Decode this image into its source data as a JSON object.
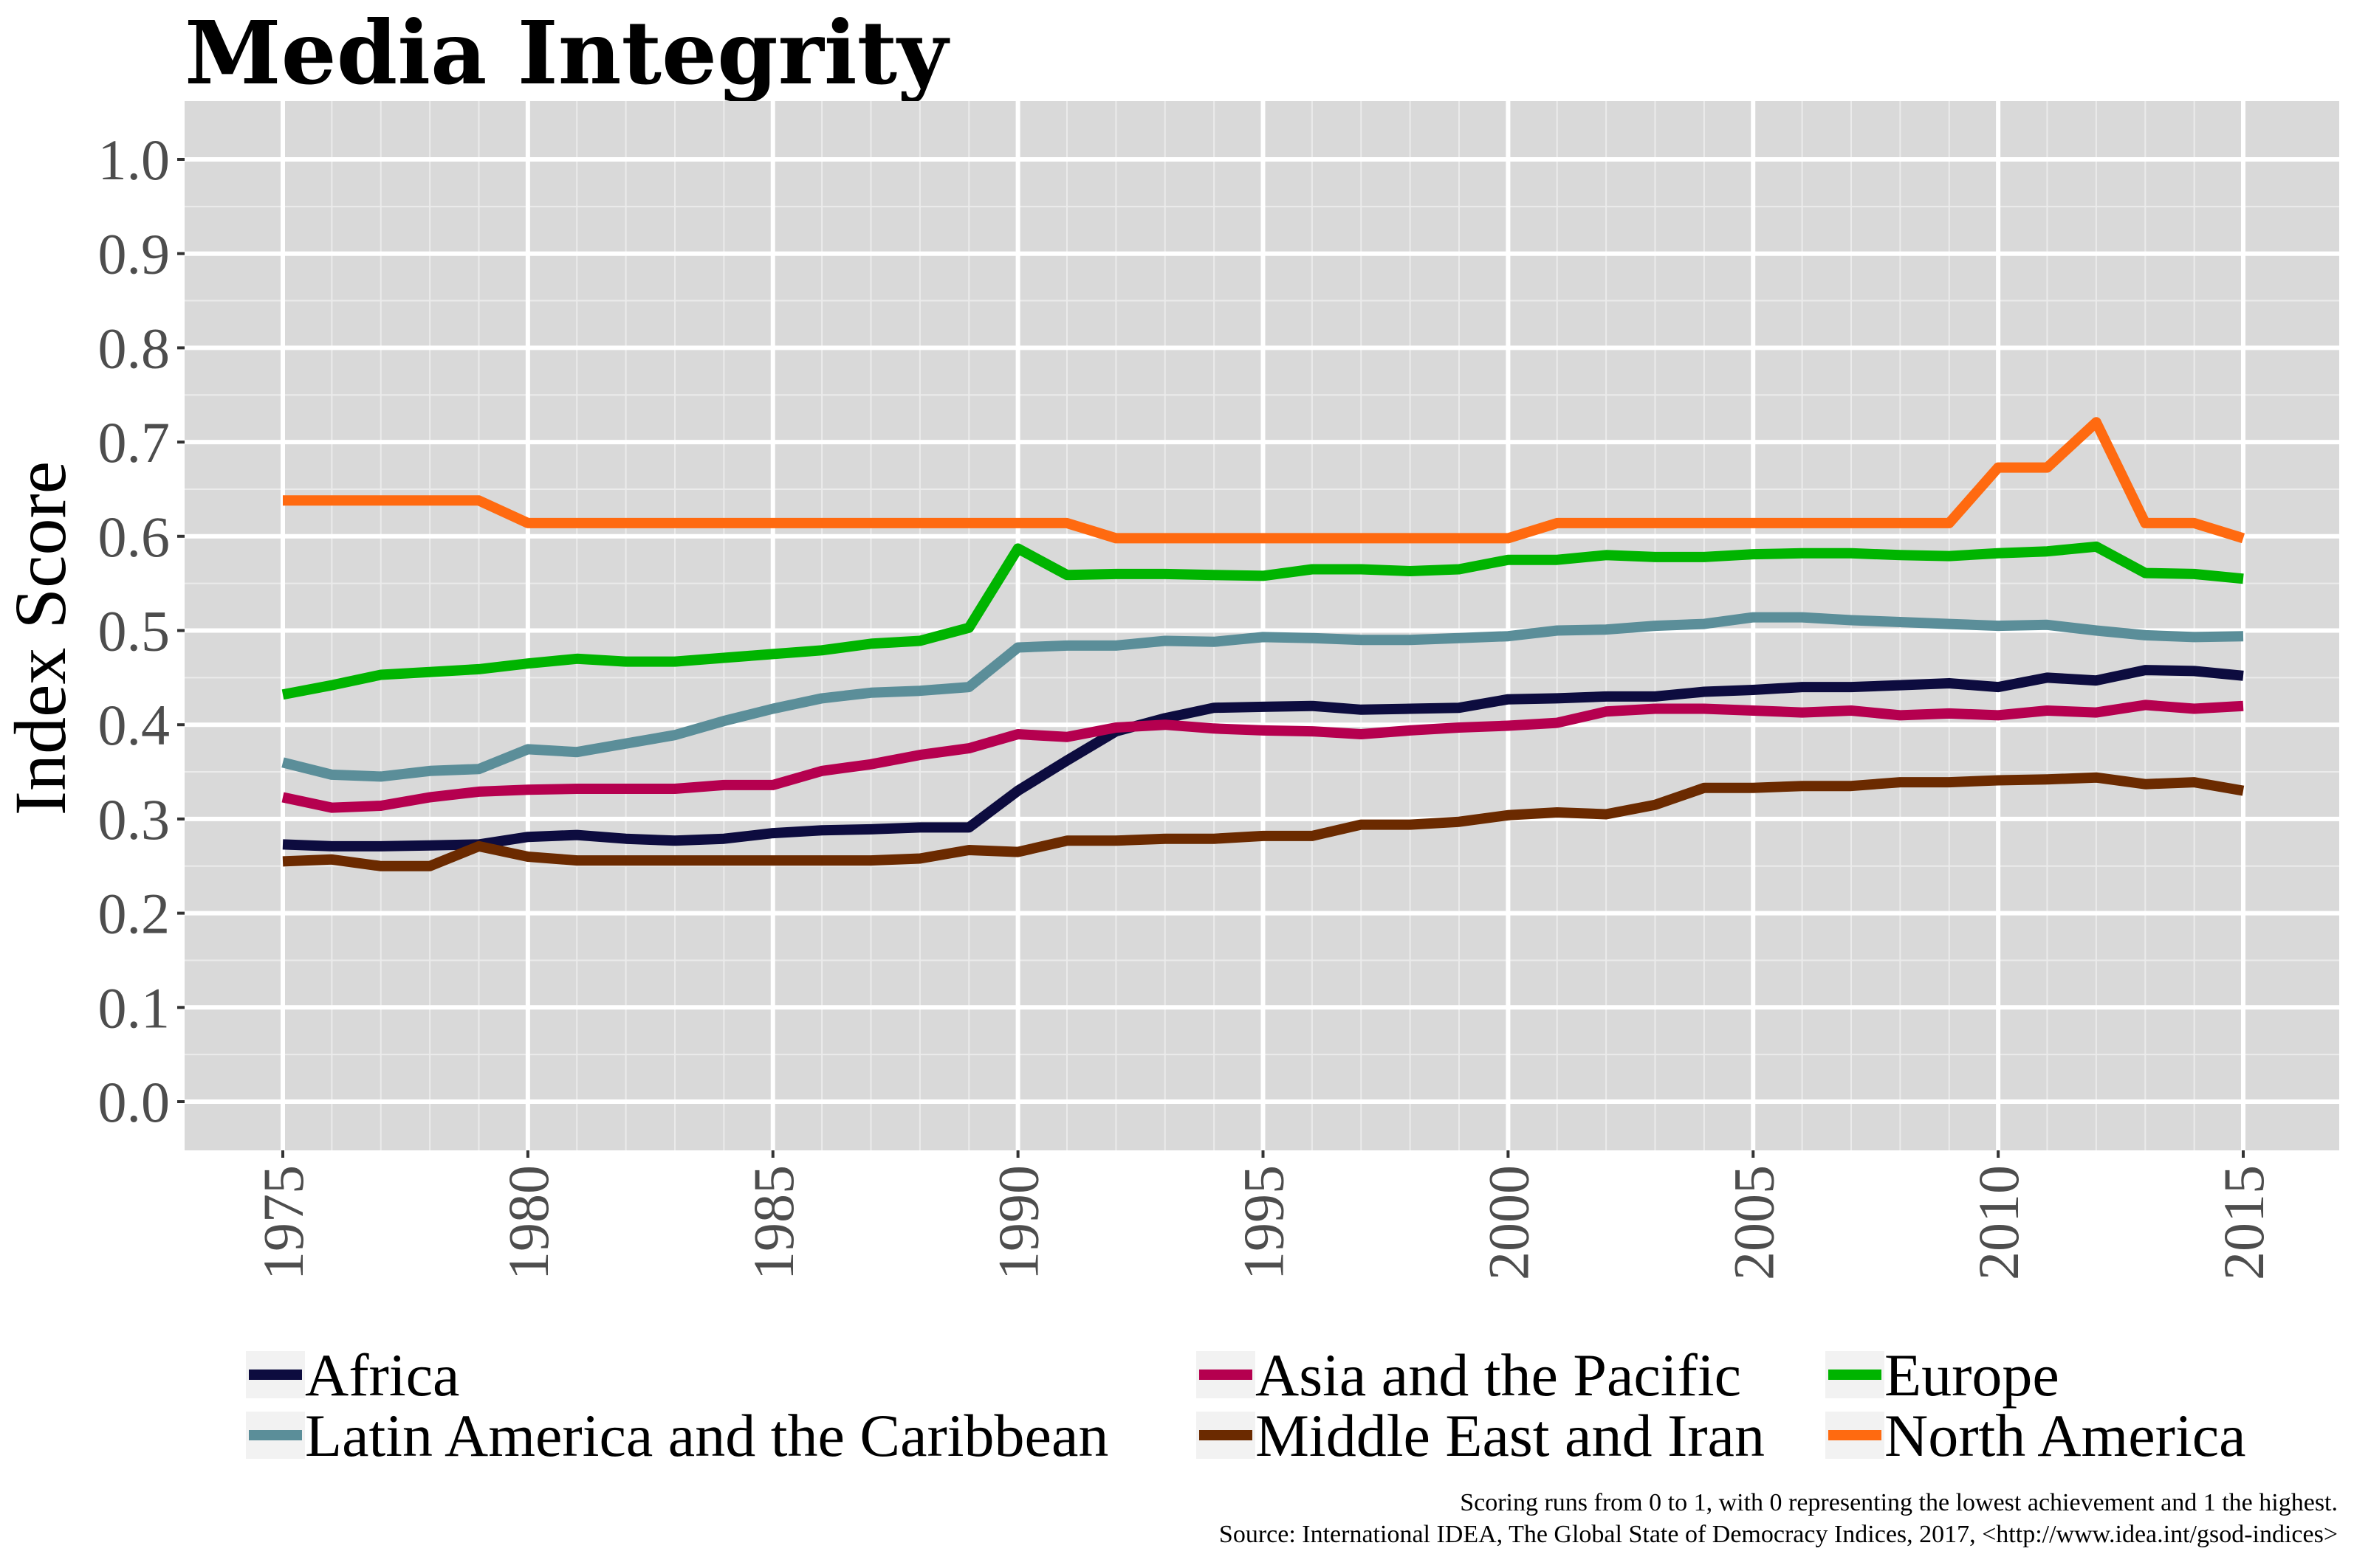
{
  "chart_data": {
    "type": "line",
    "title": "Media Integrity",
    "xlabel": "",
    "ylabel": "Index Score",
    "xlim": [
      1975,
      2015
    ],
    "ylim": [
      0.0,
      1.0
    ],
    "x_ticks": [
      "1975",
      "1980",
      "1985",
      "1990",
      "1995",
      "2000",
      "2005",
      "2010",
      "2015"
    ],
    "y_ticks": [
      "0.0",
      "0.1",
      "0.2",
      "0.3",
      "0.4",
      "0.5",
      "0.6",
      "0.7",
      "0.8",
      "0.9",
      "1.0"
    ],
    "grid": true,
    "legend_position": "bottom",
    "x": [
      1975,
      1976,
      1977,
      1978,
      1979,
      1980,
      1981,
      1982,
      1983,
      1984,
      1985,
      1986,
      1987,
      1988,
      1989,
      1990,
      1991,
      1992,
      1993,
      1994,
      1995,
      1996,
      1997,
      1998,
      1999,
      2000,
      2001,
      2002,
      2003,
      2004,
      2005,
      2006,
      2007,
      2008,
      2009,
      2010,
      2011,
      2012,
      2013,
      2014,
      2015
    ],
    "series": [
      {
        "name": "Africa",
        "color": "#0d0c3f",
        "values": [
          0.273,
          0.271,
          0.271,
          0.272,
          0.273,
          0.281,
          0.283,
          0.279,
          0.277,
          0.279,
          0.285,
          0.288,
          0.289,
          0.291,
          0.291,
          0.33,
          0.362,
          0.393,
          0.407,
          0.418,
          0.419,
          0.42,
          0.416,
          0.417,
          0.418,
          0.427,
          0.428,
          0.43,
          0.43,
          0.435,
          0.437,
          0.44,
          0.44,
          0.442,
          0.444,
          0.44,
          0.45,
          0.447,
          0.458,
          0.457,
          0.452
        ]
      },
      {
        "name": "Asia and the Pacific",
        "color": "#b5004f",
        "values": [
          0.323,
          0.312,
          0.314,
          0.323,
          0.329,
          0.331,
          0.332,
          0.332,
          0.332,
          0.336,
          0.336,
          0.351,
          0.358,
          0.368,
          0.375,
          0.39,
          0.387,
          0.397,
          0.4,
          0.396,
          0.394,
          0.393,
          0.39,
          0.394,
          0.397,
          0.399,
          0.402,
          0.414,
          0.417,
          0.417,
          0.415,
          0.413,
          0.415,
          0.41,
          0.412,
          0.41,
          0.415,
          0.413,
          0.421,
          0.417,
          0.42
        ]
      },
      {
        "name": "Europe",
        "color": "#00b400",
        "values": [
          0.432,
          0.442,
          0.453,
          0.456,
          0.459,
          0.465,
          0.47,
          0.467,
          0.467,
          0.471,
          0.475,
          0.479,
          0.486,
          0.489,
          0.503,
          0.587,
          0.559,
          0.56,
          0.56,
          0.559,
          0.558,
          0.565,
          0.565,
          0.563,
          0.565,
          0.575,
          0.575,
          0.58,
          0.578,
          0.578,
          0.581,
          0.582,
          0.582,
          0.58,
          0.579,
          0.582,
          0.584,
          0.589,
          0.561,
          0.56,
          0.555
        ]
      },
      {
        "name": "Latin America and the Caribbean",
        "color": "#5b8e99",
        "values": [
          0.36,
          0.347,
          0.345,
          0.351,
          0.353,
          0.374,
          0.371,
          0.38,
          0.389,
          0.404,
          0.417,
          0.428,
          0.434,
          0.436,
          0.44,
          0.482,
          0.484,
          0.484,
          0.489,
          0.488,
          0.493,
          0.492,
          0.49,
          0.49,
          0.492,
          0.494,
          0.5,
          0.501,
          0.505,
          0.507,
          0.514,
          0.514,
          0.511,
          0.509,
          0.507,
          0.505,
          0.506,
          0.5,
          0.495,
          0.493,
          0.494
        ]
      },
      {
        "name": "Middle East and Iran",
        "color": "#6b2a00",
        "values": [
          0.255,
          0.257,
          0.25,
          0.25,
          0.271,
          0.26,
          0.256,
          0.256,
          0.256,
          0.256,
          0.256,
          0.256,
          0.256,
          0.258,
          0.267,
          0.265,
          0.277,
          0.277,
          0.279,
          0.279,
          0.282,
          0.282,
          0.294,
          0.294,
          0.297,
          0.304,
          0.307,
          0.305,
          0.315,
          0.333,
          0.333,
          0.335,
          0.335,
          0.339,
          0.339,
          0.341,
          0.342,
          0.344,
          0.337,
          0.339,
          0.33
        ]
      },
      {
        "name": "North America",
        "color": "#ff6a10",
        "values": [
          0.638,
          0.638,
          0.638,
          0.638,
          0.638,
          0.614,
          0.614,
          0.614,
          0.614,
          0.614,
          0.614,
          0.614,
          0.614,
          0.614,
          0.614,
          0.614,
          0.614,
          0.598,
          0.598,
          0.598,
          0.598,
          0.598,
          0.598,
          0.598,
          0.598,
          0.598,
          0.614,
          0.614,
          0.614,
          0.614,
          0.614,
          0.614,
          0.614,
          0.614,
          0.614,
          0.673,
          0.673,
          0.721,
          0.614,
          0.614,
          0.598
        ]
      }
    ]
  },
  "notes": {
    "line1": "Scoring runs from 0 to 1, with 0 representing the lowest achievement and 1 the highest.",
    "line2": "Source: International IDEA, The Global State of Democracy Indices, 2017, <http://www.idea.int/gsod-indices>"
  }
}
